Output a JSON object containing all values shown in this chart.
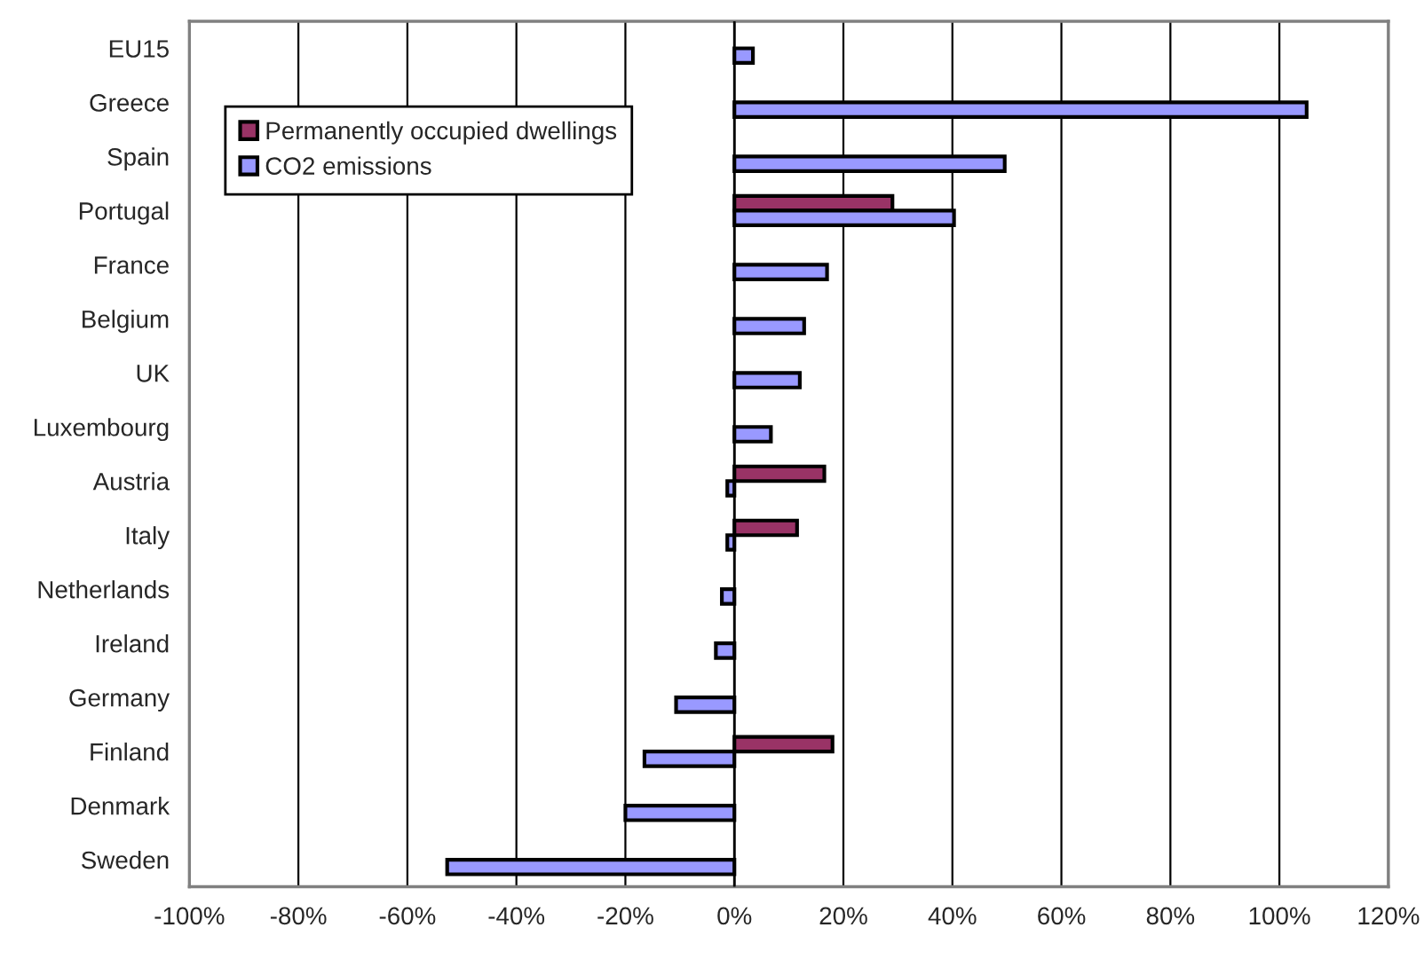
{
  "chart_data": {
    "type": "bar",
    "orientation": "horizontal",
    "categories": [
      "EU15",
      "Greece",
      "Spain",
      "Portugal",
      "France",
      "Belgium",
      "UK",
      "Luxembourg",
      "Austria",
      "Italy",
      "Netherlands",
      "Ireland",
      "Germany",
      "Finland",
      "Denmark",
      "Sweden"
    ],
    "series": [
      {
        "name": "Permanently occupied dwellings",
        "color": "#993366",
        "values": [
          null,
          null,
          null,
          29,
          null,
          null,
          null,
          null,
          16.5,
          11.5,
          null,
          null,
          null,
          18,
          null,
          null
        ]
      },
      {
        "name": "CO2 emissions",
        "color": "#9999ff",
        "values": [
          3.4,
          105,
          49.6,
          40.3,
          17,
          12.8,
          12,
          6.7,
          -1.3,
          -1.3,
          -2.3,
          -3.4,
          -10.7,
          -16.5,
          -20,
          -52.7
        ]
      }
    ],
    "xlim": [
      -100,
      120
    ],
    "xticks": [
      {
        "value": -100,
        "label": "-100%"
      },
      {
        "value": -80,
        "label": "-80%"
      },
      {
        "value": -60,
        "label": "-60%"
      },
      {
        "value": -40,
        "label": "-40%"
      },
      {
        "value": -20,
        "label": "-20%"
      },
      {
        "value": 0,
        "label": "0%"
      },
      {
        "value": 20,
        "label": "20%"
      },
      {
        "value": 40,
        "label": "40%"
      },
      {
        "value": 60,
        "label": "60%"
      },
      {
        "value": 80,
        "label": "80%"
      },
      {
        "value": 100,
        "label": "100%"
      },
      {
        "value": 120,
        "label": "120%"
      }
    ],
    "grid": "x",
    "legend": "top left"
  }
}
